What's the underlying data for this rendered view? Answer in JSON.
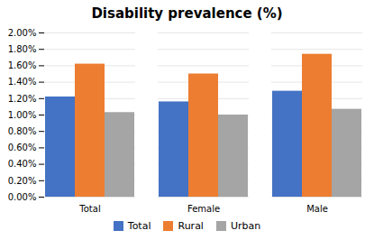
{
  "chart_data": {
    "type": "bar",
    "title": "Disability prevalence (%)",
    "categories": [
      "Total",
      "Female",
      "Male"
    ],
    "series": [
      {
        "name": "Total",
        "color": "#4472C4",
        "values": [
          0.0122,
          0.0116,
          0.0129
        ]
      },
      {
        "name": "Rural",
        "color": "#ED7D31",
        "values": [
          0.0162,
          0.015,
          0.0174
        ]
      },
      {
        "name": "Urban",
        "color": "#A5A5A5",
        "values": [
          0.0103,
          0.01,
          0.0107
        ]
      }
    ],
    "ylim": [
      0,
      0.02
    ],
    "yticks": [
      {
        "value": 0.0,
        "label": "0.00%"
      },
      {
        "value": 0.002,
        "label": "0.20%"
      },
      {
        "value": 0.004,
        "label": "0.40%"
      },
      {
        "value": 0.006,
        "label": "0.60%"
      },
      {
        "value": 0.008,
        "label": "0.80%"
      },
      {
        "value": 0.01,
        "label": "1.00%"
      },
      {
        "value": 0.012,
        "label": "1.20%"
      },
      {
        "value": 0.014,
        "label": "1.40%"
      },
      {
        "value": 0.016,
        "label": "1.60%"
      },
      {
        "value": 0.018,
        "label": "1.80%"
      },
      {
        "value": 0.02,
        "label": "2.00%"
      }
    ],
    "grid": true,
    "legend": "bottom"
  }
}
